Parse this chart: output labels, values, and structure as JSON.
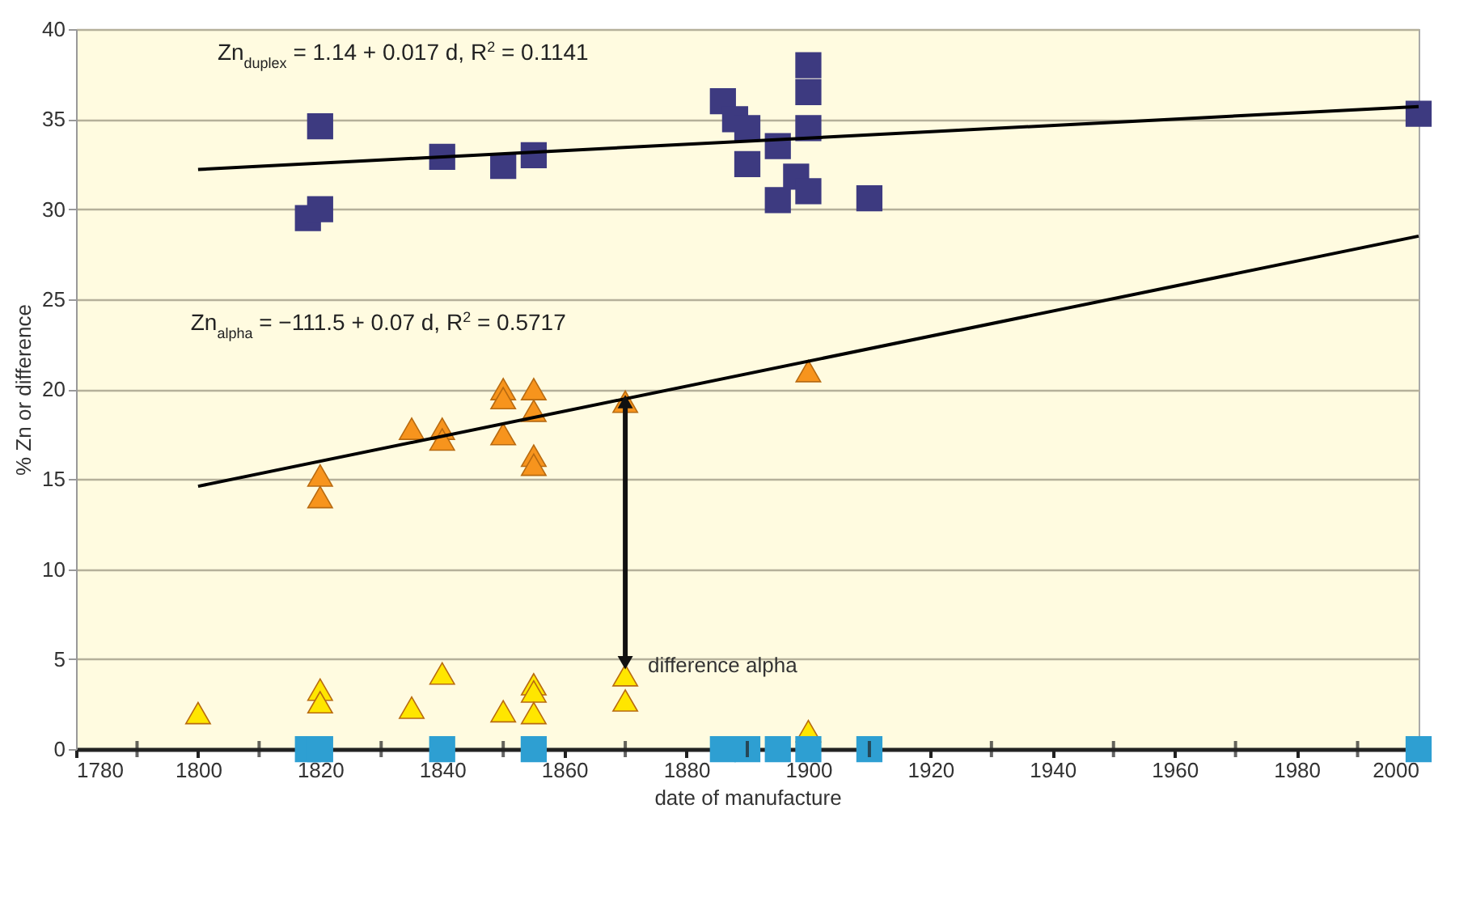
{
  "chart_data": {
    "type": "scatter",
    "xlabel": "date of manufacture",
    "ylabel": "% Zn or difference",
    "xlim": [
      1780,
      2000
    ],
    "ylim": [
      0,
      40
    ],
    "xticks": [
      1780,
      {
        "value": 1790,
        "label": null
      },
      1800,
      {
        "value": 1810,
        "label": null
      },
      1820,
      {
        "value": 1830,
        "label": null
      },
      1840,
      {
        "value": 1850,
        "label": null
      },
      1860,
      {
        "value": 1870,
        "label": null
      },
      1880,
      {
        "value": 1890,
        "label": null
      },
      1900,
      {
        "value": 1910,
        "label": null
      },
      1920,
      {
        "value": 1930,
        "label": null
      },
      1940,
      {
        "value": 1950,
        "label": null
      },
      1960,
      {
        "value": 1970,
        "label": null
      },
      1980,
      {
        "value": 1990,
        "label": null
      },
      2000
    ],
    "yticks": [
      0,
      5,
      10,
      15,
      20,
      25,
      30,
      35,
      40
    ],
    "grid": "y",
    "annotations": [
      "Zn$_{duplex}$ = 1.14 + 0.017 d, R$^{2}$ = 0.1141",
      "Zn$_{alpha}$ = −111.5 + 0.07 d, R$^{2}$ = 0.5717",
      {
        "text": "difference alpha",
        "x": 1870,
        "y": 4.8
      }
    ],
    "series": [
      {
        "marker": "square",
        "color": "#3d3a80",
        "x": [
          1820,
          1818,
          1820,
          1840,
          1850,
          1855,
          1886,
          1888,
          1890,
          1890,
          1895,
          1895,
          1898,
          1900,
          1900,
          1900,
          1900,
          1910,
          2000
        ],
        "values": [
          34.6,
          29.5,
          30.0,
          32.9,
          32.4,
          33.0,
          36.0,
          35.0,
          34.5,
          32.5,
          30.5,
          33.5,
          31.8,
          38.0,
          36.5,
          34.5,
          31.0,
          30.6,
          35.3
        ]
      },
      {
        "marker": "triangle",
        "color": "#f7941d",
        "x": [
          1820,
          1820,
          1835,
          1840,
          1840,
          1850,
          1850,
          1850,
          1855,
          1855,
          1855,
          1855,
          1870,
          1900
        ],
        "values": [
          15.2,
          14.0,
          17.8,
          17.8,
          17.2,
          20.0,
          19.5,
          17.5,
          20.0,
          18.8,
          16.3,
          15.8,
          19.3,
          21.0
        ]
      },
      {
        "marker": "triangle",
        "color": "#ffe600",
        "x": [
          1800,
          1820,
          1820,
          1835,
          1840,
          1850,
          1855,
          1855,
          1855,
          1870,
          1870,
          1900
        ],
        "values": [
          2.0,
          3.3,
          2.6,
          2.3,
          4.2,
          2.1,
          3.6,
          3.2,
          2.0,
          4.1,
          2.7,
          1.0
        ]
      },
      {
        "marker": "square",
        "color": "#2e9fd2",
        "x": [
          1818,
          1820,
          1840,
          1855,
          1886,
          1890,
          1895,
          1900,
          1910,
          2000
        ],
        "values": [
          0,
          0,
          0,
          0,
          0,
          0,
          0,
          0,
          0,
          0
        ]
      },
      {
        "type": "line",
        "color": "#000000",
        "x": [
          1800,
          2000
        ],
        "values": [
          32.2,
          35.7
        ]
      },
      {
        "type": "line",
        "color": "#000000",
        "x": [
          1800,
          2000
        ],
        "values": [
          14.6,
          28.5
        ]
      }
    ]
  }
}
